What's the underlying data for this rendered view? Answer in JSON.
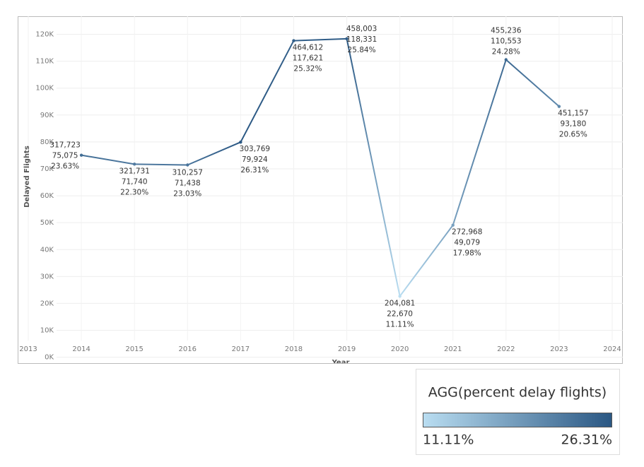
{
  "chart_data": {
    "type": "line",
    "x_label": "Year",
    "y_label": "Delayed Flights",
    "x": [
      2014,
      2015,
      2016,
      2017,
      2018,
      2019,
      2020,
      2021,
      2022,
      2023
    ],
    "series": [
      {
        "values": [
          75075,
          71740,
          71438,
          79924,
          117621,
          118331,
          22670,
          49079,
          110553,
          93180
        ],
        "value_labels": [
          "75,075",
          "71,740",
          "71,438",
          "79,924",
          "117,621",
          "118,331",
          "22,670",
          "49,079",
          "110,553",
          "93,180"
        ],
        "total_flights": [
          317723,
          321731,
          310257,
          303769,
          464612,
          458003,
          204081,
          272968,
          455236,
          451157
        ],
        "total_flights_labels": [
          "317,723",
          "321,731",
          "310,257",
          "303,769",
          "464,612",
          "458,003",
          "204,081",
          "272,968",
          "455,236",
          "451,157"
        ],
        "percent_delayed": [
          23.63,
          22.3,
          23.03,
          26.31,
          25.32,
          25.84,
          11.11,
          17.98,
          24.28,
          20.65
        ],
        "percent_labels": [
          "23.63%",
          "22.30%",
          "23.03%",
          "26.31%",
          "25.32%",
          "25.84%",
          "11.11%",
          "17.98%",
          "24.28%",
          "20.65%"
        ]
      }
    ],
    "xlim": [
      2012.8,
      2024.2
    ],
    "xticks": [
      2013,
      2014,
      2015,
      2016,
      2017,
      2018,
      2019,
      2020,
      2021,
      2022,
      2023,
      2024
    ],
    "ylim": [
      -2200,
      126700
    ],
    "yticks": [
      {
        "value": 0,
        "label": "0K"
      },
      {
        "value": 10000,
        "label": "10K"
      },
      {
        "value": 20000,
        "label": "20K"
      },
      {
        "value": 30000,
        "label": "30K"
      },
      {
        "value": 40000,
        "label": "40K"
      },
      {
        "value": 50000,
        "label": "50K"
      },
      {
        "value": 60000,
        "label": "60K"
      },
      {
        "value": 70000,
        "label": "70K"
      },
      {
        "value": 80000,
        "label": "80K"
      },
      {
        "value": 90000,
        "label": "90K"
      },
      {
        "value": 100000,
        "label": "100K"
      },
      {
        "value": 110000,
        "label": "110K"
      },
      {
        "value": 120000,
        "label": "120K"
      }
    ],
    "grid": true,
    "color_scale": {
      "title": "AGG(percent delay flights)",
      "range": [
        {
          "value": 11.11,
          "label": "11.11%"
        },
        {
          "value": 26.31,
          "label": "26.31%"
        }
      ],
      "colors": [
        "#b9ddf1",
        "#2a5783"
      ]
    }
  }
}
